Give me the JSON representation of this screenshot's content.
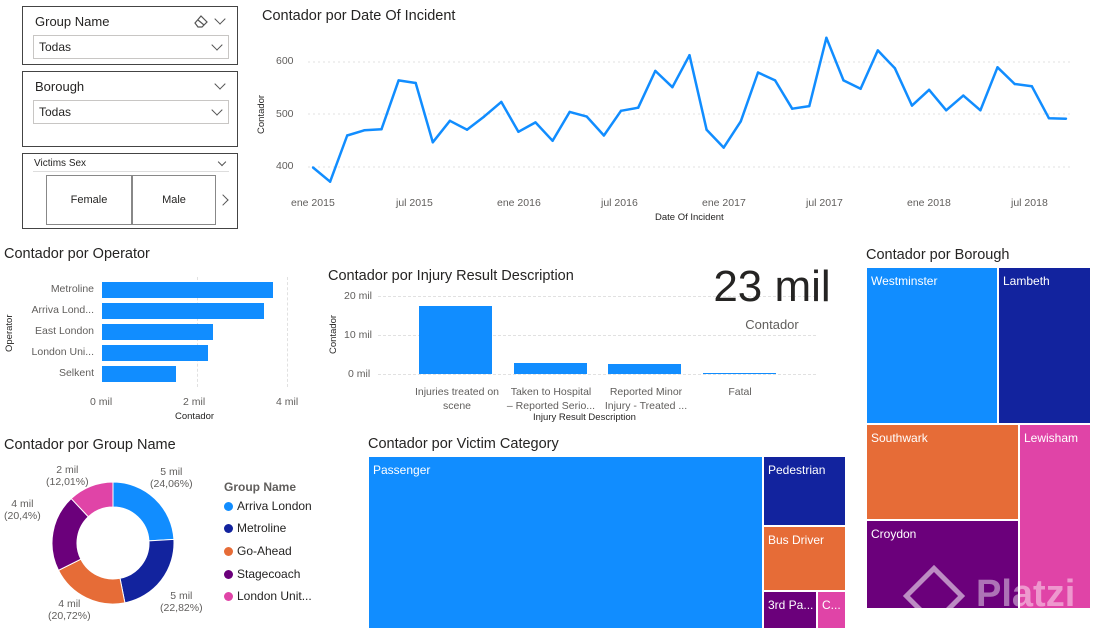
{
  "slicers": {
    "group_name": {
      "title": "Group Name",
      "value": "Todas"
    },
    "borough": {
      "title": "Borough",
      "value": "Todas"
    },
    "victims_sex": {
      "title": "Victims Sex",
      "options": [
        "Female",
        "Male"
      ]
    }
  },
  "line_chart": {
    "title": "Contador por Date Of Incident",
    "xlabel": "Date Of Incident",
    "ylabel": "Contador",
    "y_ticks": [
      "600",
      "500",
      "400"
    ],
    "x_ticks": [
      "ene 2015",
      "jul 2015",
      "ene 2016",
      "jul 2016",
      "ene 2017",
      "jul 2017",
      "ene 2018",
      "jul 2018"
    ]
  },
  "operator_chart": {
    "title": "Contador por Operator",
    "xlabel": "Contador",
    "ylabel": "Operator",
    "categories": [
      "Metroline",
      "Arriva Lond...",
      "East London",
      "London Uni...",
      "Selkent"
    ],
    "x_ticks": [
      "0 mil",
      "2 mil",
      "4 mil"
    ]
  },
  "injury_chart": {
    "title": "Contador por Injury Result Description",
    "xlabel": "Injury Result Description",
    "ylabel": "Contador",
    "y_ticks": [
      "20 mil",
      "10 mil",
      "0 mil"
    ],
    "categories": [
      [
        "Injuries treated on",
        "scene"
      ],
      [
        "Taken to Hospital",
        "– Reported Serio..."
      ],
      [
        "Reported Minor",
        "Injury - Treated ..."
      ],
      [
        "Fatal",
        ""
      ]
    ]
  },
  "kpi": {
    "value": "23 mil",
    "label": "Contador"
  },
  "group_chart": {
    "title": "Contador por Group Name",
    "legend_title": "Group Name",
    "legend": [
      "Arriva London",
      "Metroline",
      "Go-Ahead",
      "Stagecoach",
      "London Unit..."
    ],
    "labels": [
      {
        "value": "5 mil",
        "pct": "(24,06%)"
      },
      {
        "value": "5 mil",
        "pct": "(22,82%)"
      },
      {
        "value": "4 mil",
        "pct": "(20,72%)"
      },
      {
        "value": "4 mil",
        "pct": "(20,4%)"
      },
      {
        "value": "2 mil",
        "pct": "(12,01%)"
      }
    ]
  },
  "victim_chart": {
    "title": "Contador por Victim Category",
    "tiles": [
      "Passenger",
      "Pedestrian",
      "Bus Driver",
      "3rd Pa...",
      "C..."
    ]
  },
  "borough_chart": {
    "title": "Contador por Borough",
    "tiles": [
      "Westminster",
      "Lambeth",
      "Southwark",
      "Lewisham",
      "Croydon"
    ]
  },
  "watermark": {
    "text": "Platzi"
  },
  "chart_data": [
    {
      "type": "line",
      "title": "Contador por Date Of Incident",
      "xlabel": "Date Of Incident",
      "ylabel": "Contador",
      "ylim": [
        370,
        650
      ],
      "x": [
        "2015-01",
        "2015-02",
        "2015-03",
        "2015-04",
        "2015-05",
        "2015-06",
        "2015-07",
        "2015-08",
        "2015-09",
        "2015-10",
        "2015-11",
        "2015-12",
        "2016-01",
        "2016-02",
        "2016-03",
        "2016-04",
        "2016-05",
        "2016-06",
        "2016-07",
        "2016-08",
        "2016-09",
        "2016-10",
        "2016-11",
        "2016-12",
        "2017-01",
        "2017-02",
        "2017-03",
        "2017-04",
        "2017-05",
        "2017-06",
        "2017-07",
        "2017-08",
        "2017-09",
        "2017-10",
        "2017-11",
        "2017-12",
        "2018-01",
        "2018-02",
        "2018-03",
        "2018-04",
        "2018-05",
        "2018-06",
        "2018-07",
        "2018-08",
        "2018-09"
      ],
      "values": [
        399,
        372,
        460,
        470,
        472,
        565,
        560,
        447,
        488,
        471,
        496,
        524,
        467,
        485,
        450,
        505,
        496,
        460,
        507,
        513,
        583,
        552,
        613,
        471,
        437,
        487,
        580,
        565,
        511,
        516,
        646,
        565,
        549,
        622,
        588,
        517,
        547,
        508,
        536,
        508,
        590,
        558,
        554,
        493,
        492
      ]
    },
    {
      "type": "bar",
      "orientation": "horizontal",
      "title": "Contador por Operator",
      "categories": [
        "Metroline",
        "Arriva Lond...",
        "East London",
        "London Uni...",
        "Selkent"
      ],
      "values": [
        3.7,
        3.5,
        2.4,
        2.3,
        1.6
      ],
      "xlim": [
        0,
        4
      ],
      "xlabel": "Contador",
      "ylabel": "Operator"
    },
    {
      "type": "bar",
      "title": "Contador por Injury Result Description",
      "categories": [
        "Injuries treated on scene",
        "Taken to Hospital – Reported Serio...",
        "Reported Minor Injury - Treated ...",
        "Fatal"
      ],
      "values": [
        17.5,
        2.9,
        2.7,
        0.1
      ],
      "ylim": [
        0,
        20
      ],
      "xlabel": "Injury Result Description",
      "ylabel": "Contador"
    },
    {
      "type": "pie",
      "variant": "donut",
      "title": "Contador por Group Name",
      "categories": [
        "Arriva London",
        "Metroline",
        "Go-Ahead",
        "Stagecoach",
        "London Unit..."
      ],
      "values": [
        24.06,
        22.82,
        20.72,
        20.4,
        12.01
      ],
      "colors": [
        "#118dff",
        "#12239e",
        "#e66c37",
        "#6b007b",
        "#e044a7"
      ]
    },
    {
      "type": "treemap",
      "title": "Contador por Victim Category",
      "categories": [
        "Passenger",
        "Pedestrian",
        "Bus Driver",
        "3rd Pa...",
        "C..."
      ],
      "colors": [
        "#118dff",
        "#12239e",
        "#e66c37",
        "#6b007b",
        "#e044a7"
      ]
    },
    {
      "type": "treemap",
      "title": "Contador por Borough",
      "categories": [
        "Westminster",
        "Lambeth",
        "Southwark",
        "Lewisham",
        "Croydon"
      ],
      "colors": [
        "#118dff",
        "#12239e",
        "#e66c37",
        "#e044a7",
        "#6b007b"
      ]
    }
  ]
}
